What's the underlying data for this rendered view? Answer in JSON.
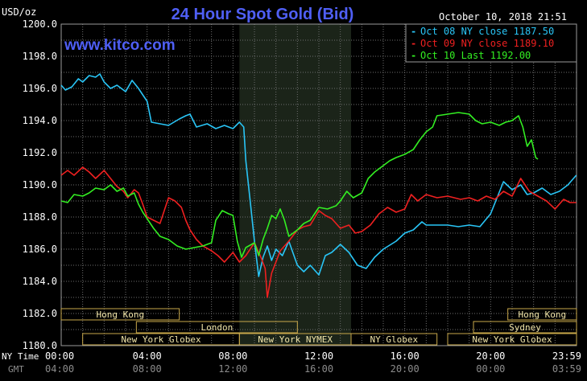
{
  "chart_data": {
    "type": "line",
    "title": "24 Hour Spot Gold (Bid)",
    "timestamp": "October 10, 2018 21:51",
    "watermark": "www.kitco.com",
    "ylabel": "USD/oz",
    "ylim": [
      1180,
      1200
    ],
    "xlim": [
      0,
      24
    ],
    "y_ticks": [
      "1200.0",
      "1198.0",
      "1196.0",
      "1194.0",
      "1192.0",
      "1190.0",
      "1188.0",
      "1186.0",
      "1184.0",
      "1182.0",
      "1180.0"
    ],
    "x_label_ny": "NY Time",
    "x_label_gmt": "GMT",
    "x_ticks_ny": [
      "00:00",
      "04:00",
      "08:00",
      "12:00",
      "16:00",
      "20:00",
      "23:59"
    ],
    "x_ticks_gmt": [
      "04:00",
      "08:00",
      "12:00",
      "16:00",
      "20:00",
      "00:00",
      "03:59"
    ],
    "grid": true,
    "legend_position": "top-right",
    "shaded_period": [
      8.3,
      13.5
    ],
    "sessions": [
      {
        "label": "Hong Kong",
        "start": 0,
        "end": 5.5,
        "row": 0
      },
      {
        "label": "Hong Kong",
        "start": 20.8,
        "end": 24,
        "row": 0
      },
      {
        "label": "London",
        "start": 3.5,
        "end": 11,
        "row": 1
      },
      {
        "label": "Sydney",
        "start": 19.2,
        "end": 24,
        "row": 1
      },
      {
        "label": "New York Globex",
        "start": 1,
        "end": 8.3,
        "row": 2
      },
      {
        "label": "New York NYMEX",
        "start": 8.3,
        "end": 13.5,
        "row": 2
      },
      {
        "label": "NY Globex",
        "start": 13.5,
        "end": 17.5,
        "row": 2
      },
      {
        "label": "New York Globex",
        "start": 18,
        "end": 24,
        "row": 2
      }
    ],
    "series": [
      {
        "name": "Oct 08 NY close 1187.50",
        "color": "#29c5f6",
        "points": [
          [
            0,
            1196.2
          ],
          [
            0.2,
            1195.9
          ],
          [
            0.5,
            1196.1
          ],
          [
            0.8,
            1196.6
          ],
          [
            1,
            1196.4
          ],
          [
            1.3,
            1196.8
          ],
          [
            1.6,
            1196.7
          ],
          [
            1.8,
            1196.9
          ],
          [
            2,
            1196.4
          ],
          [
            2.3,
            1196.0
          ],
          [
            2.6,
            1196.2
          ],
          [
            3,
            1195.8
          ],
          [
            3.3,
            1196.5
          ],
          [
            3.6,
            1196.0
          ],
          [
            3.8,
            1195.6
          ],
          [
            4,
            1195.2
          ],
          [
            4.2,
            1193.9
          ],
          [
            4.6,
            1193.8
          ],
          [
            5,
            1193.7
          ],
          [
            5.5,
            1194.1
          ],
          [
            5.8,
            1194.3
          ],
          [
            6,
            1194.4
          ],
          [
            6.3,
            1193.6
          ],
          [
            6.8,
            1193.8
          ],
          [
            7.2,
            1193.5
          ],
          [
            7.6,
            1193.7
          ],
          [
            8,
            1193.5
          ],
          [
            8.3,
            1193.9
          ],
          [
            8.5,
            1193.6
          ],
          [
            8.6,
            1191.5
          ],
          [
            8.8,
            1189.0
          ],
          [
            9,
            1186.5
          ],
          [
            9.2,
            1184.3
          ],
          [
            9.4,
            1185.5
          ],
          [
            9.6,
            1186.2
          ],
          [
            9.8,
            1185.3
          ],
          [
            10,
            1186.0
          ],
          [
            10.3,
            1185.6
          ],
          [
            10.6,
            1186.5
          ],
          [
            11,
            1185.0
          ],
          [
            11.3,
            1184.6
          ],
          [
            11.6,
            1185.0
          ],
          [
            12,
            1184.4
          ],
          [
            12.3,
            1185.6
          ],
          [
            12.6,
            1185.8
          ],
          [
            13,
            1186.3
          ],
          [
            13.4,
            1185.8
          ],
          [
            13.8,
            1185.0
          ],
          [
            14.2,
            1184.8
          ],
          [
            14.6,
            1185.5
          ],
          [
            15,
            1186.0
          ],
          [
            15.6,
            1186.5
          ],
          [
            16,
            1187.0
          ],
          [
            16.4,
            1187.2
          ],
          [
            16.8,
            1187.7
          ],
          [
            17,
            1187.5
          ],
          [
            17.5,
            1187.5
          ],
          [
            18,
            1187.5
          ],
          [
            18.5,
            1187.4
          ],
          [
            19,
            1187.5
          ],
          [
            19.5,
            1187.4
          ],
          [
            20,
            1188.2
          ],
          [
            20.3,
            1189.2
          ],
          [
            20.6,
            1190.2
          ],
          [
            21,
            1189.7
          ],
          [
            21.4,
            1190.0
          ],
          [
            21.7,
            1189.4
          ],
          [
            22,
            1189.5
          ],
          [
            22.4,
            1189.8
          ],
          [
            22.8,
            1189.4
          ],
          [
            23.2,
            1189.6
          ],
          [
            23.6,
            1190.0
          ],
          [
            23.99,
            1190.6
          ]
        ]
      },
      {
        "name": "Oct 09 NY close 1189.10",
        "color": "#ee2020",
        "points": [
          [
            0,
            1190.6
          ],
          [
            0.3,
            1190.9
          ],
          [
            0.6,
            1190.6
          ],
          [
            1,
            1191.1
          ],
          [
            1.3,
            1190.8
          ],
          [
            1.6,
            1190.4
          ],
          [
            2,
            1190.9
          ],
          [
            2.3,
            1190.4
          ],
          [
            2.6,
            1189.9
          ],
          [
            2.9,
            1189.6
          ],
          [
            3.1,
            1189.2
          ],
          [
            3.4,
            1189.7
          ],
          [
            3.6,
            1189.5
          ],
          [
            3.8,
            1188.8
          ],
          [
            4,
            1188.0
          ],
          [
            4.3,
            1187.8
          ],
          [
            4.6,
            1187.6
          ],
          [
            5,
            1189.2
          ],
          [
            5.3,
            1189.0
          ],
          [
            5.6,
            1188.6
          ],
          [
            5.8,
            1187.8
          ],
          [
            6,
            1187.2
          ],
          [
            6.3,
            1186.6
          ],
          [
            6.6,
            1186.2
          ],
          [
            7,
            1185.9
          ],
          [
            7.3,
            1185.6
          ],
          [
            7.6,
            1185.2
          ],
          [
            8,
            1185.8
          ],
          [
            8.3,
            1185.2
          ],
          [
            8.6,
            1185.6
          ],
          [
            9,
            1186.4
          ],
          [
            9.3,
            1185.5
          ],
          [
            9.5,
            1184.8
          ],
          [
            9.6,
            1183.0
          ],
          [
            9.8,
            1184.5
          ],
          [
            10,
            1185.2
          ],
          [
            10.2,
            1185.9
          ],
          [
            10.6,
            1186.5
          ],
          [
            11,
            1187.2
          ],
          [
            11.3,
            1187.4
          ],
          [
            11.6,
            1187.5
          ],
          [
            12,
            1188.4
          ],
          [
            12.3,
            1188.1
          ],
          [
            12.6,
            1187.9
          ],
          [
            13,
            1187.3
          ],
          [
            13.4,
            1187.5
          ],
          [
            13.7,
            1187.0
          ],
          [
            14,
            1187.1
          ],
          [
            14.4,
            1187.5
          ],
          [
            14.8,
            1188.2
          ],
          [
            15.2,
            1188.6
          ],
          [
            15.6,
            1188.3
          ],
          [
            16,
            1188.5
          ],
          [
            16.3,
            1189.4
          ],
          [
            16.6,
            1189.0
          ],
          [
            17,
            1189.4
          ],
          [
            17.5,
            1189.2
          ],
          [
            18,
            1189.3
          ],
          [
            18.6,
            1189.1
          ],
          [
            19,
            1189.2
          ],
          [
            19.4,
            1189.0
          ],
          [
            19.8,
            1189.3
          ],
          [
            20.2,
            1189.1
          ],
          [
            20.6,
            1189.6
          ],
          [
            21,
            1189.3
          ],
          [
            21.4,
            1190.4
          ],
          [
            21.8,
            1189.6
          ],
          [
            22.2,
            1189.3
          ],
          [
            22.6,
            1189.0
          ],
          [
            23,
            1188.5
          ],
          [
            23.4,
            1189.1
          ],
          [
            23.7,
            1188.9
          ],
          [
            23.99,
            1188.9
          ]
        ]
      },
      {
        "name": "Oct 10 Last 1192.00",
        "color": "#33ee22",
        "points": [
          [
            0,
            1189.0
          ],
          [
            0.3,
            1188.9
          ],
          [
            0.6,
            1189.4
          ],
          [
            1,
            1189.3
          ],
          [
            1.3,
            1189.5
          ],
          [
            1.6,
            1189.8
          ],
          [
            2,
            1189.7
          ],
          [
            2.3,
            1190.0
          ],
          [
            2.6,
            1189.6
          ],
          [
            2.9,
            1189.8
          ],
          [
            3.1,
            1189.3
          ],
          [
            3.4,
            1189.5
          ],
          [
            3.6,
            1188.8
          ],
          [
            3.8,
            1188.3
          ],
          [
            4,
            1187.9
          ],
          [
            4.3,
            1187.3
          ],
          [
            4.6,
            1186.8
          ],
          [
            5,
            1186.6
          ],
          [
            5.4,
            1186.2
          ],
          [
            5.8,
            1186.0
          ],
          [
            6.2,
            1186.1
          ],
          [
            6.6,
            1186.2
          ],
          [
            7,
            1186.4
          ],
          [
            7.2,
            1187.8
          ],
          [
            7.5,
            1188.4
          ],
          [
            7.8,
            1188.2
          ],
          [
            8,
            1188.1
          ],
          [
            8.2,
            1186.5
          ],
          [
            8.4,
            1185.5
          ],
          [
            8.6,
            1186.1
          ],
          [
            9,
            1186.4
          ],
          [
            9.2,
            1185.6
          ],
          [
            9.4,
            1186.6
          ],
          [
            9.6,
            1187.3
          ],
          [
            9.8,
            1188.1
          ],
          [
            10,
            1187.9
          ],
          [
            10.2,
            1188.5
          ],
          [
            10.4,
            1187.8
          ],
          [
            10.6,
            1186.8
          ],
          [
            11,
            1187.2
          ],
          [
            11.3,
            1187.6
          ],
          [
            11.6,
            1187.8
          ],
          [
            12,
            1188.6
          ],
          [
            12.4,
            1188.5
          ],
          [
            12.8,
            1188.7
          ],
          [
            13,
            1189.0
          ],
          [
            13.3,
            1189.6
          ],
          [
            13.6,
            1189.2
          ],
          [
            14,
            1189.5
          ],
          [
            14.3,
            1190.4
          ],
          [
            14.6,
            1190.8
          ],
          [
            15,
            1191.2
          ],
          [
            15.3,
            1191.5
          ],
          [
            15.6,
            1191.7
          ],
          [
            16,
            1191.9
          ],
          [
            16.4,
            1192.2
          ],
          [
            16.7,
            1192.8
          ],
          [
            17,
            1193.3
          ],
          [
            17.3,
            1193.6
          ],
          [
            17.5,
            1194.3
          ],
          [
            18,
            1194.4
          ],
          [
            18.5,
            1194.5
          ],
          [
            19,
            1194.4
          ],
          [
            19.3,
            1194.0
          ],
          [
            19.6,
            1193.8
          ],
          [
            20,
            1193.9
          ],
          [
            20.4,
            1193.7
          ],
          [
            20.7,
            1193.9
          ],
          [
            21,
            1194.0
          ],
          [
            21.3,
            1194.3
          ],
          [
            21.5,
            1193.6
          ],
          [
            21.7,
            1192.4
          ],
          [
            21.9,
            1192.8
          ],
          [
            22.1,
            1191.7
          ],
          [
            22.2,
            1191.6
          ]
        ]
      }
    ]
  }
}
